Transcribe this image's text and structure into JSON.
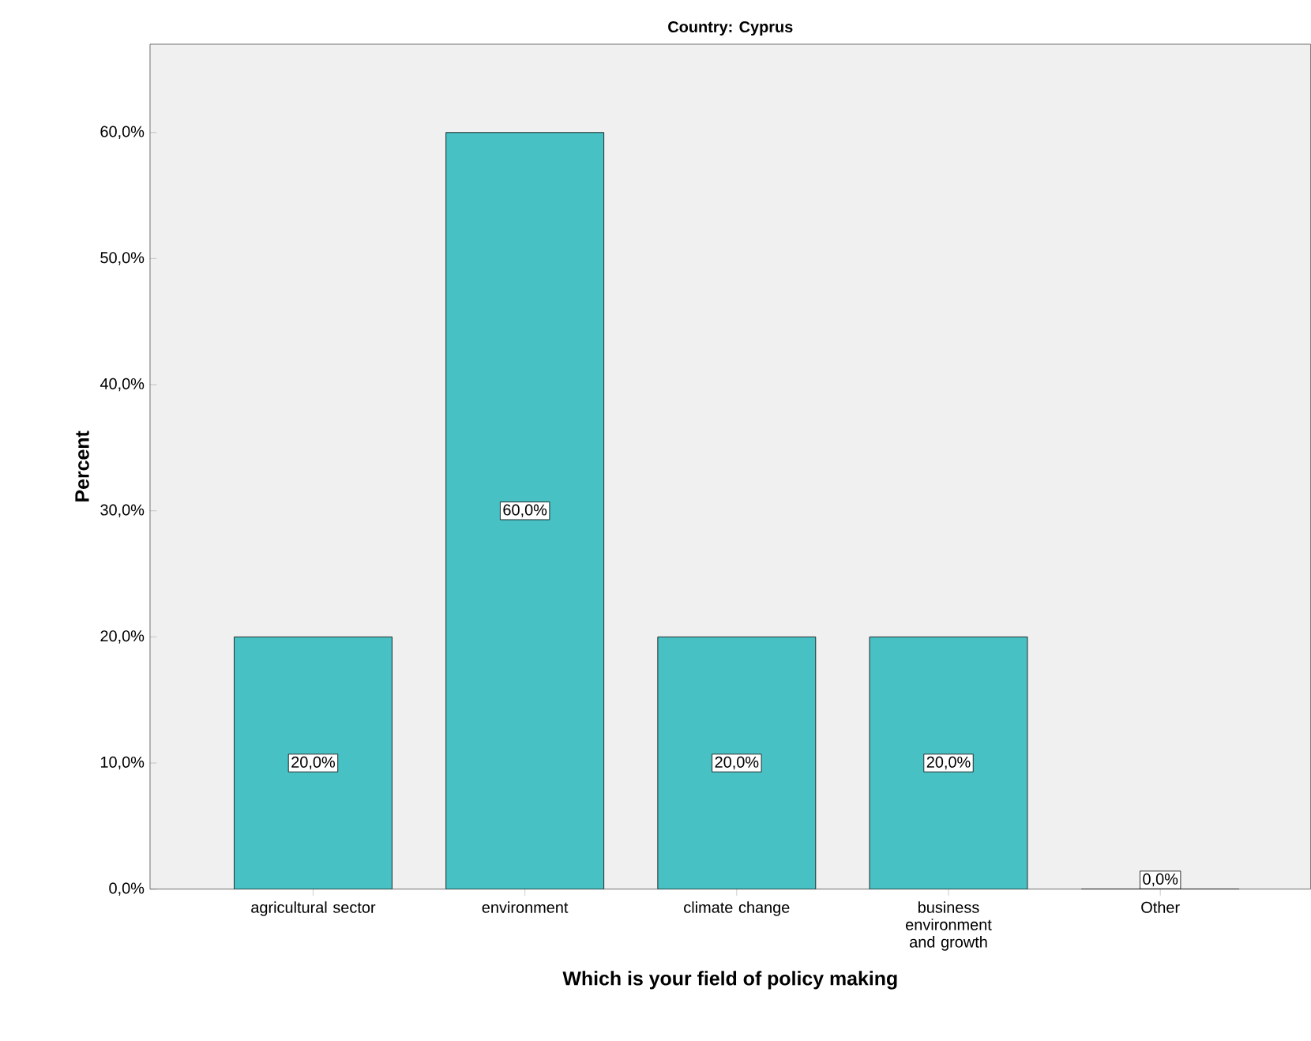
{
  "chart_data": {
    "type": "bar",
    "title": "Country: Cyprus",
    "xlabel": "Which is your field of policy making",
    "ylabel": "Percent",
    "categories": [
      "agricultural sector",
      "environment",
      "climate change",
      "business environment and growth",
      "Other"
    ],
    "values": [
      20,
      60,
      20,
      20,
      0
    ],
    "value_labels": [
      "20,0%",
      "60,0%",
      "20,0%",
      "20,0%",
      "0,0%"
    ],
    "color": "#48c1c4",
    "ylim": [
      0,
      67
    ],
    "yticks": [
      {
        "value": 0,
        "label": "0,0%"
      },
      {
        "value": 10,
        "label": "10,0%"
      },
      {
        "value": 20,
        "label": "20,0%"
      },
      {
        "value": 30,
        "label": "30,0%"
      },
      {
        "value": 40,
        "label": "40,0%"
      },
      {
        "value": 50,
        "label": "50,0%"
      },
      {
        "value": 60,
        "label": "60,0%"
      }
    ],
    "grid": false
  }
}
